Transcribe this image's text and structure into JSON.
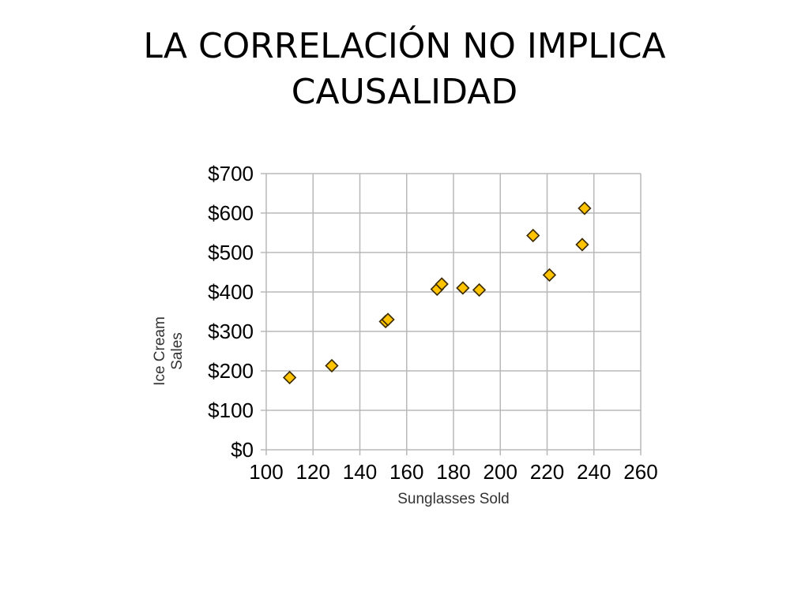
{
  "slide": {
    "title_line1": "LA CORRELACIÓN NO IMPLICA",
    "title_line2": "CAUSALIDAD"
  },
  "chart_data": {
    "type": "scatter",
    "title": "",
    "xlabel": "Sunglasses Sold",
    "ylabel_lines": [
      "Ice Cream",
      "Sales"
    ],
    "xlim": [
      100,
      260
    ],
    "ylim": [
      0,
      700
    ],
    "x_ticks": [
      100,
      120,
      140,
      160,
      180,
      200,
      220,
      240,
      260
    ],
    "y_ticks": [
      0,
      100,
      200,
      300,
      400,
      500,
      600,
      700
    ],
    "y_tick_labels": [
      "$0",
      "$100",
      "$200",
      "$300",
      "$400",
      "$500",
      "$600",
      "$700"
    ],
    "grid": true,
    "legend": "none",
    "marker": "diamond",
    "marker_color": "#FFC300",
    "marker_edge_color": "#3a2a00",
    "grid_color": "#b8b8b8",
    "points": [
      {
        "x": 110,
        "y": 183
      },
      {
        "x": 128,
        "y": 213
      },
      {
        "x": 151,
        "y": 325
      },
      {
        "x": 152,
        "y": 330
      },
      {
        "x": 173,
        "y": 407
      },
      {
        "x": 175,
        "y": 420
      },
      {
        "x": 184,
        "y": 410
      },
      {
        "x": 191,
        "y": 405
      },
      {
        "x": 214,
        "y": 543
      },
      {
        "x": 221,
        "y": 443
      },
      {
        "x": 235,
        "y": 520
      },
      {
        "x": 236,
        "y": 612
      }
    ]
  }
}
